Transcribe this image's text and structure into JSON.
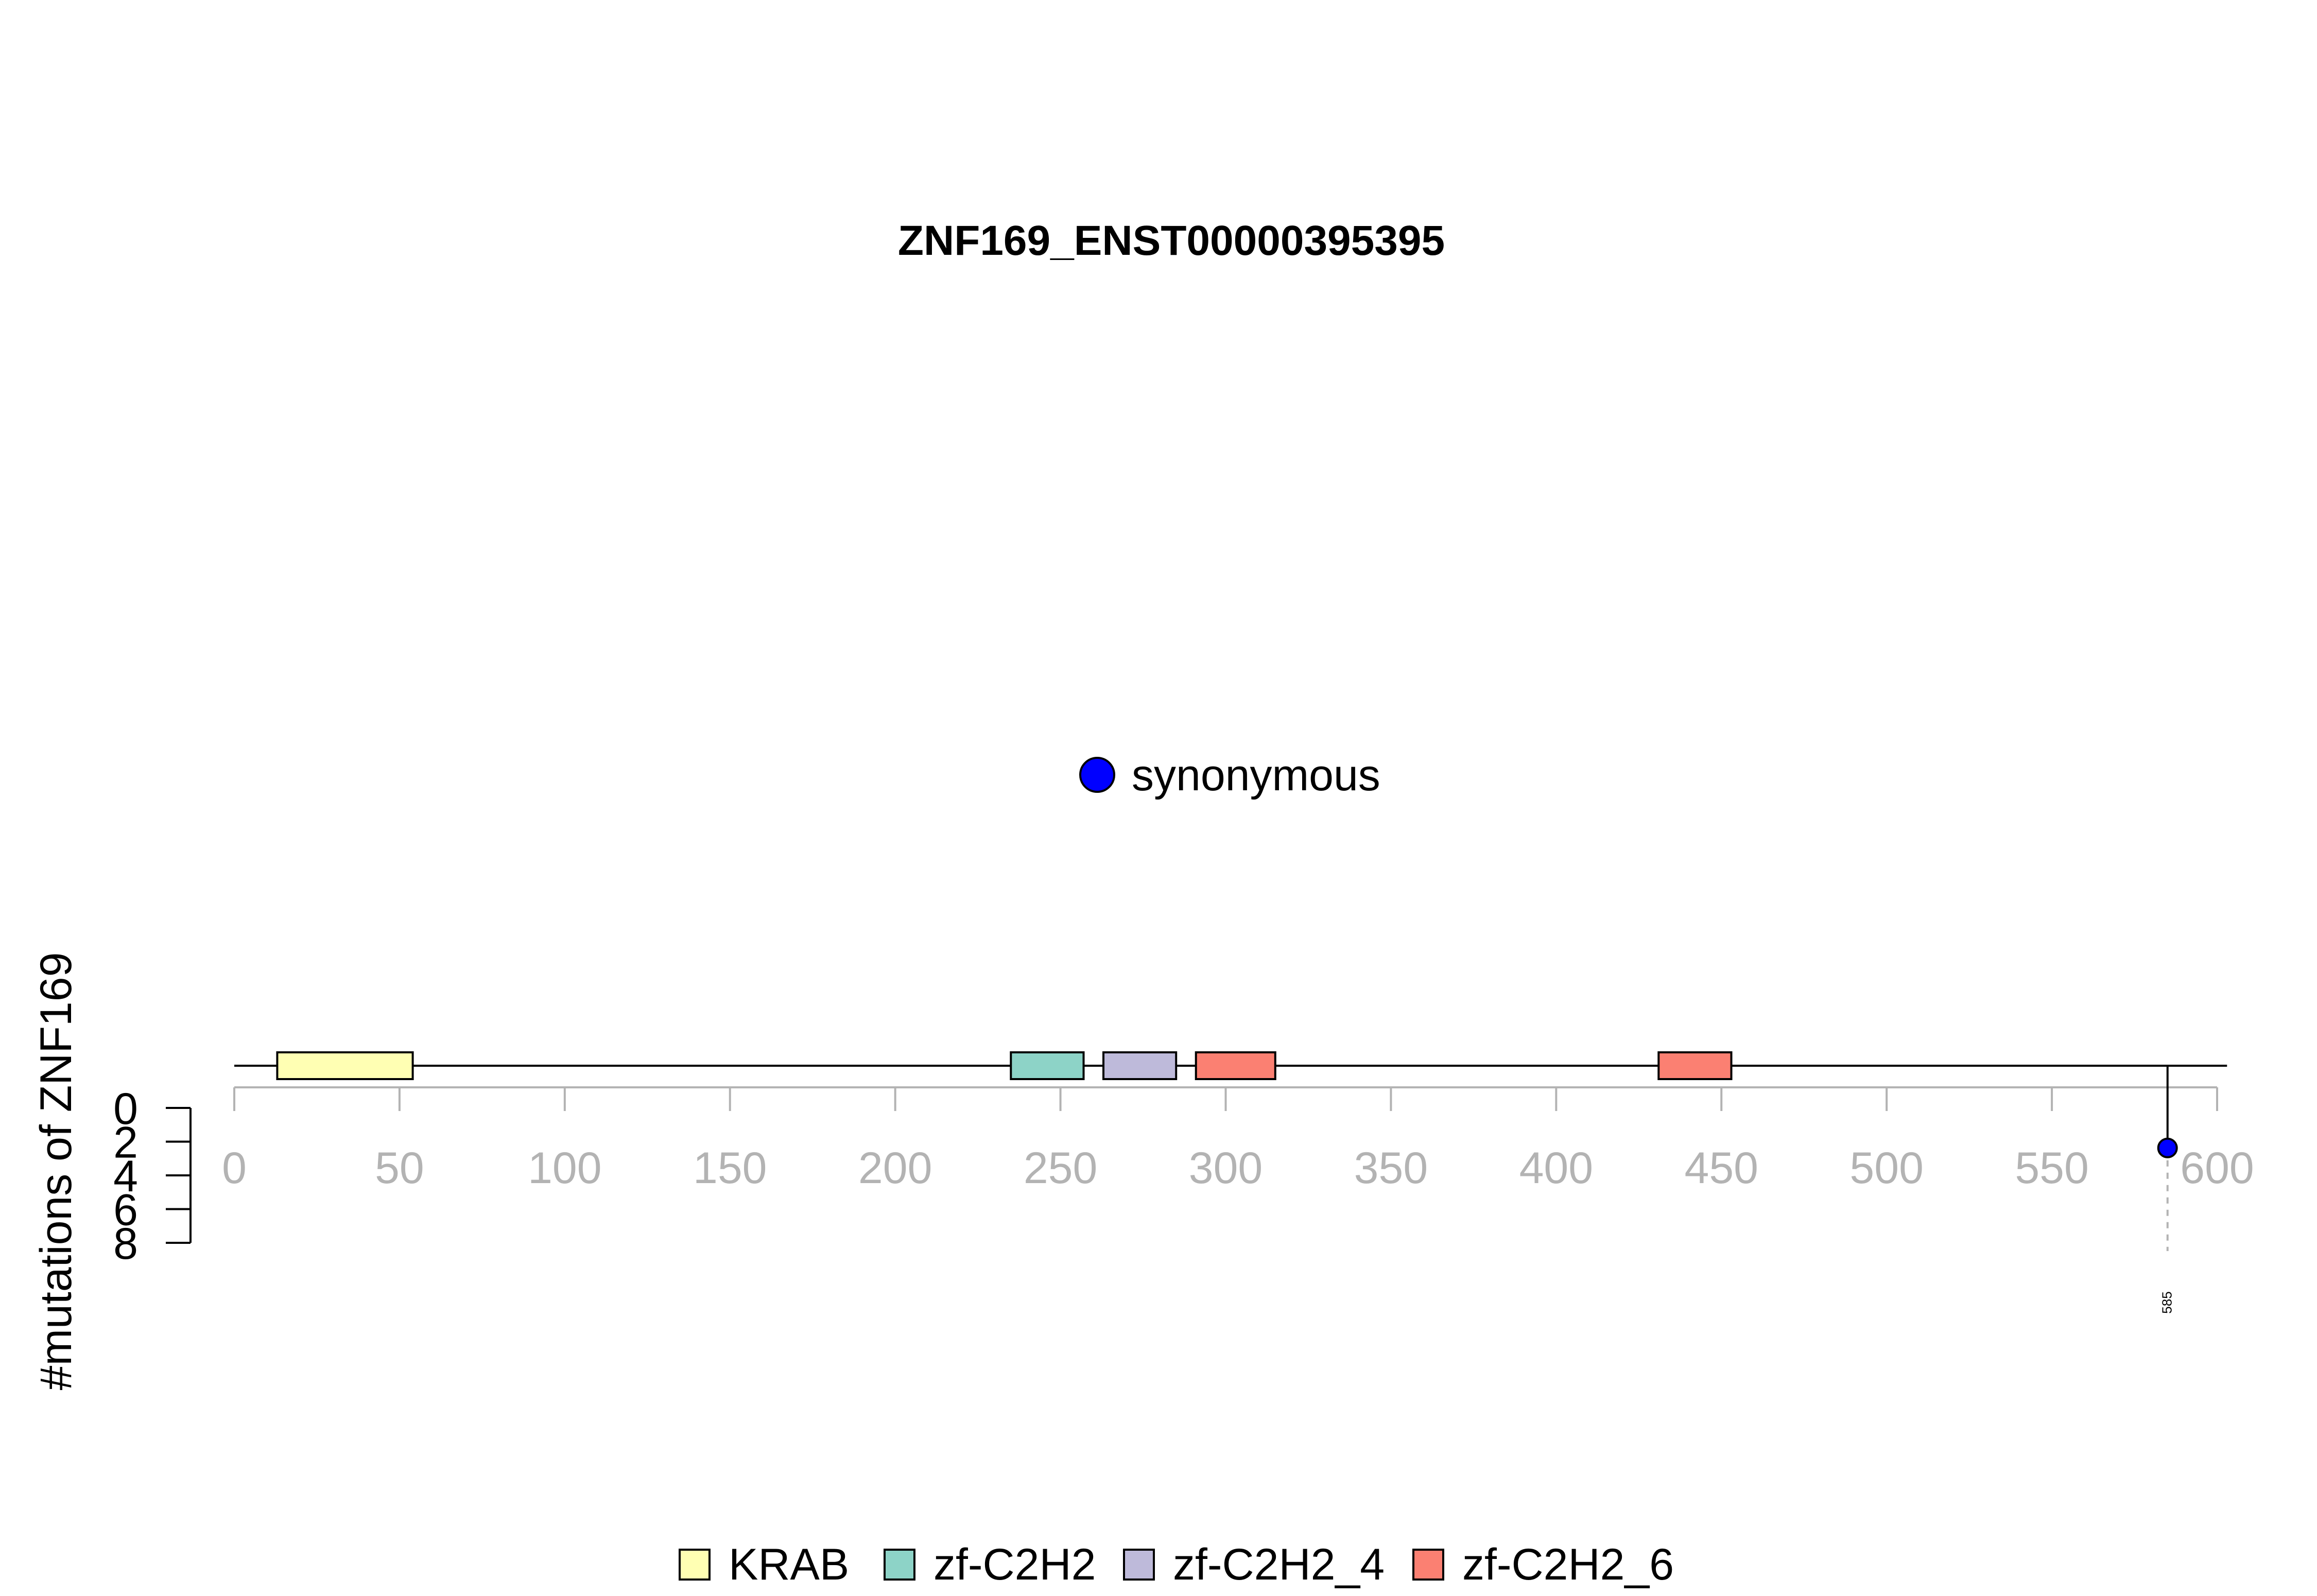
{
  "chart_data": {
    "type": "lollipop",
    "title": "ZNF169_ENST00000395395",
    "ylabel": "#mutations of ZNF169",
    "protein_length": 603,
    "xlim": [
      0,
      600
    ],
    "x_ticks": [
      0,
      50,
      100,
      150,
      200,
      250,
      300,
      350,
      400,
      450,
      500,
      550,
      600
    ],
    "ylim": [
      0,
      8
    ],
    "y_ticks": [
      0,
      2,
      4,
      6,
      8
    ],
    "domains": [
      {
        "name": "KRAB",
        "start": 13,
        "end": 54,
        "color": "#FFFFB3"
      },
      {
        "name": "zf-C2H2",
        "start": 235,
        "end": 257,
        "color": "#8DD3C7"
      },
      {
        "name": "zf-C2H2_4",
        "start": 263,
        "end": 285,
        "color": "#BEBADA"
      },
      {
        "name": "zf-C2H2_6",
        "start": 291,
        "end": 315,
        "color": "#FB8072"
      },
      {
        "name": "zf-C2H2_6",
        "start": 431,
        "end": 453,
        "color": "#FB8072"
      }
    ],
    "mutations": [
      {
        "position": 585,
        "count": 1,
        "type": "synonymous",
        "color": "#0000FF",
        "label": "585"
      }
    ],
    "mutation_legend": [
      {
        "label": "synonymous",
        "color": "#0000FF"
      }
    ],
    "domain_legend": [
      {
        "label": "KRAB",
        "color": "#FFFFB3"
      },
      {
        "label": "zf-C2H2",
        "color": "#8DD3C7"
      },
      {
        "label": "zf-C2H2_4",
        "color": "#BEBADA"
      },
      {
        "label": "zf-C2H2_6",
        "color": "#FB8072"
      }
    ]
  }
}
